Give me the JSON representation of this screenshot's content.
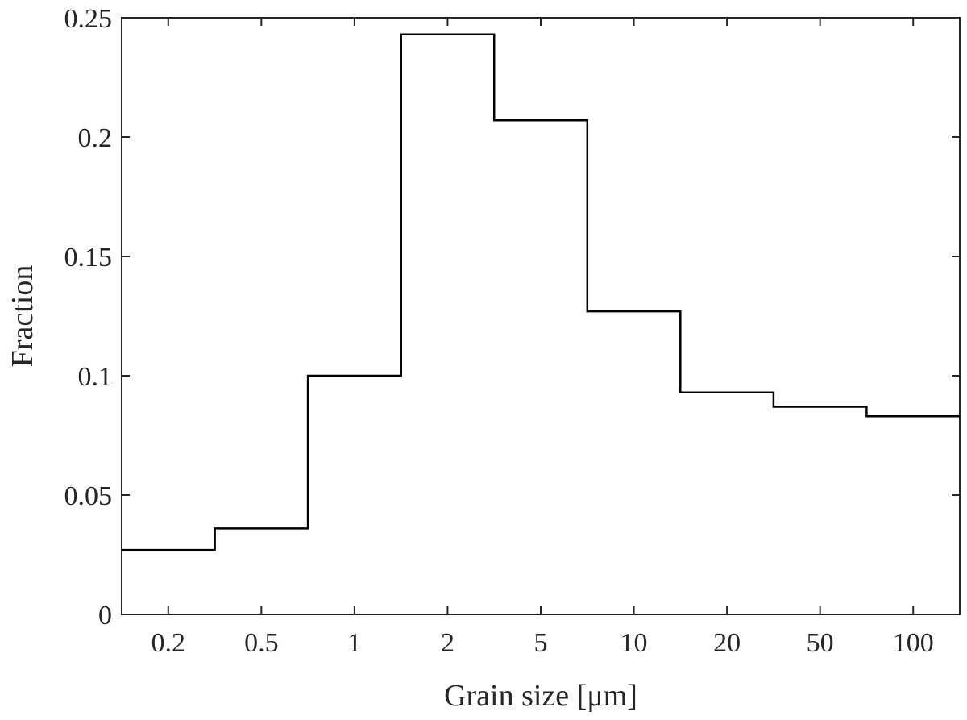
{
  "chart_data": {
    "type": "line",
    "step": "histogram",
    "xlabel": "Grain size [μm]",
    "ylabel": "Fraction",
    "xticks": [
      "0.2",
      "0.5",
      "1",
      "2",
      "5",
      "10",
      "20",
      "50",
      "100"
    ],
    "ylim": [
      0,
      0.25
    ],
    "yticks": [
      "0",
      "0.05",
      "0.1",
      "0.15",
      "0.2",
      "0.25"
    ],
    "bins": [
      "0.2",
      "0.5",
      "1",
      "2",
      "5",
      "10",
      "20",
      "50",
      "100"
    ],
    "values": [
      0.027,
      0.036,
      0.1,
      0.243,
      0.207,
      0.127,
      0.093,
      0.087,
      0.083
    ],
    "grid": false,
    "line_color": "#000000",
    "axis_color": "#262626"
  }
}
